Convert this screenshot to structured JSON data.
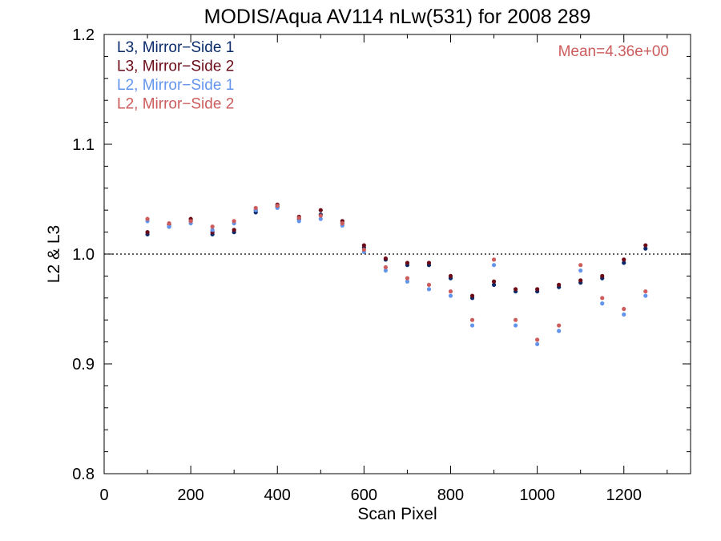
{
  "chart_data": {
    "type": "scatter",
    "title": "MODIS/Aqua AV114 nLw(531) for 2008 289",
    "xlabel": "Scan Pixel",
    "ylabel": "L2 & L3",
    "xlim": [
      0,
      1354
    ],
    "ylim": [
      0.8,
      1.2
    ],
    "x_ticks": [
      0,
      200,
      400,
      600,
      800,
      1000,
      1200
    ],
    "y_ticks": [
      0.8,
      0.9,
      1.0,
      1.1,
      1.2
    ],
    "x_tick_labels": [
      "0",
      "200",
      "400",
      "600",
      "800",
      "1000",
      "1200"
    ],
    "y_tick_labels": [
      "0.8",
      "0.9",
      "1.0",
      "1.1",
      "1.2"
    ],
    "reference_line": 1.0,
    "annotation": "Mean=4.36e+00",
    "annotation_color": "#cd5c5c",
    "legend_position": "top-left",
    "series": [
      {
        "name": "L3, Mirror−Side 1",
        "color": "#0a2a6b",
        "x": [
          100,
          150,
          200,
          250,
          300,
          350,
          400,
          450,
          500,
          550,
          600,
          650,
          700,
          750,
          800,
          850,
          900,
          950,
          1000,
          1050,
          1100,
          1150,
          1200,
          1250
        ],
        "y": [
          1.018,
          1.025,
          1.03,
          1.018,
          1.02,
          1.038,
          1.043,
          1.032,
          1.036,
          1.028,
          1.006,
          0.995,
          0.99,
          0.99,
          0.978,
          0.96,
          0.972,
          0.966,
          0.966,
          0.97,
          0.974,
          0.978,
          0.992,
          1.005
        ]
      },
      {
        "name": "L3, Mirror−Side 2",
        "color": "#6b0b17",
        "x": [
          100,
          150,
          200,
          250,
          300,
          350,
          400,
          450,
          500,
          550,
          600,
          650,
          700,
          750,
          800,
          850,
          900,
          950,
          1000,
          1050,
          1100,
          1150,
          1200,
          1250
        ],
        "y": [
          1.02,
          1.027,
          1.032,
          1.02,
          1.022,
          1.04,
          1.045,
          1.034,
          1.04,
          1.03,
          1.008,
          0.996,
          0.992,
          0.992,
          0.98,
          0.962,
          0.975,
          0.968,
          0.968,
          0.972,
          0.976,
          0.98,
          0.995,
          1.008
        ]
      },
      {
        "name": "L2, Mirror−Side 1",
        "color": "#6495ed",
        "x": [
          100,
          150,
          200,
          250,
          300,
          350,
          400,
          450,
          500,
          550,
          600,
          650,
          700,
          750,
          800,
          850,
          900,
          950,
          1000,
          1050,
          1100,
          1150,
          1200,
          1250
        ],
        "y": [
          1.03,
          1.025,
          1.028,
          1.022,
          1.028,
          1.04,
          1.042,
          1.03,
          1.032,
          1.026,
          1.002,
          0.985,
          0.975,
          0.968,
          0.962,
          0.935,
          0.99,
          0.935,
          0.918,
          0.93,
          0.985,
          0.955,
          0.945,
          0.962
        ]
      },
      {
        "name": "L2, Mirror−Side 2",
        "color": "#cd5c5c",
        "x": [
          100,
          150,
          200,
          250,
          300,
          350,
          400,
          450,
          500,
          550,
          600,
          650,
          700,
          750,
          800,
          850,
          900,
          950,
          1000,
          1050,
          1100,
          1150,
          1200,
          1250
        ],
        "y": [
          1.032,
          1.028,
          1.03,
          1.025,
          1.03,
          1.042,
          1.044,
          1.033,
          1.035,
          1.028,
          1.004,
          0.988,
          0.978,
          0.972,
          0.966,
          0.94,
          0.995,
          0.94,
          0.922,
          0.935,
          0.99,
          0.96,
          0.95,
          0.966
        ]
      }
    ]
  }
}
